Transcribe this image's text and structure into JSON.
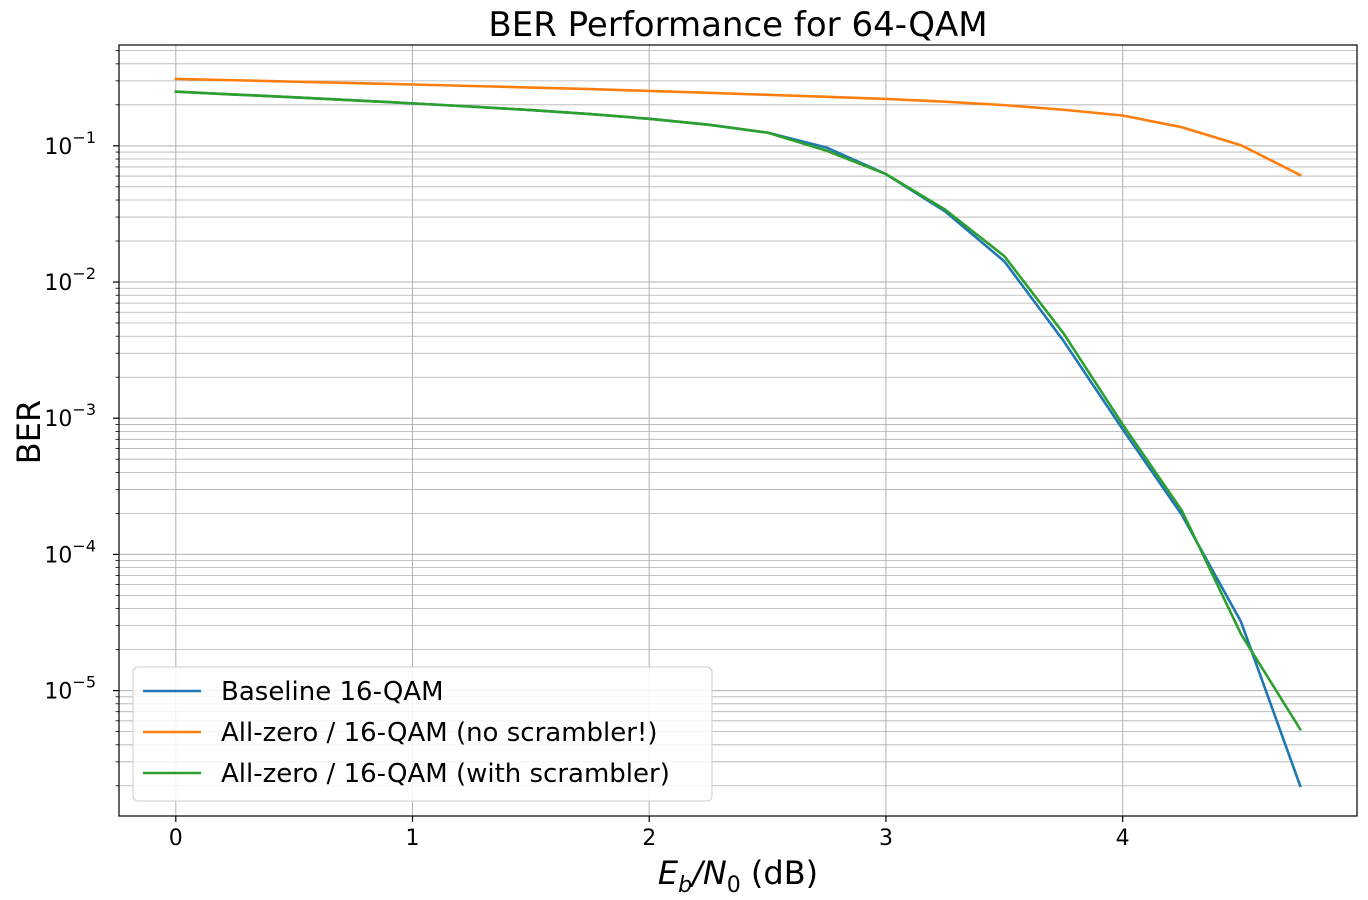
{
  "chart_data": {
    "type": "line",
    "title": "BER Performance for 64-QAM",
    "xlabel": "E_b/N_0 (dB)",
    "xlabel_parts": {
      "main": "E",
      "sub1": "b",
      "slash": "/N",
      "sub2": "0",
      "unit": " (dB)"
    },
    "ylabel": "BER",
    "xlim": [
      -0.24,
      4.99
    ],
    "ylim": [
      1.2e-06,
      0.55
    ],
    "yscale": "log",
    "grid": true,
    "legend_position": "lower-left",
    "x_ticks": [
      "0",
      "1",
      "2",
      "3",
      "4"
    ],
    "y_ticks": [
      {
        "base": "10",
        "exp": "−1",
        "value": 0.1
      },
      {
        "base": "10",
        "exp": "−2",
        "value": 0.01
      },
      {
        "base": "10",
        "exp": "−3",
        "value": 0.001
      },
      {
        "base": "10",
        "exp": "−4",
        "value": 0.0001
      },
      {
        "base": "10",
        "exp": "−5",
        "value": 1e-05
      }
    ],
    "x": [
      0,
      0.25,
      0.5,
      0.75,
      1,
      1.25,
      1.5,
      1.75,
      2,
      2.25,
      2.5,
      2.75,
      3,
      3.25,
      3.5,
      3.75,
      4,
      4.25,
      4.5,
      4.75
    ],
    "series": [
      {
        "name": "Baseline 16-QAM",
        "color": "#1f77b4",
        "values": [
          0.25,
          0.238,
          0.227,
          0.216,
          0.205,
          0.194,
          0.183,
          0.171,
          0.158,
          0.143,
          0.125,
          0.097,
          0.062,
          0.033,
          0.0142,
          0.0037,
          0.00083,
          0.000195,
          3.2e-05,
          2e-06
        ]
      },
      {
        "name": "All-zero / 16-QAM (no scrambler!)",
        "color": "#ff7f0e",
        "values": [
          0.31,
          0.303,
          0.296,
          0.289,
          0.282,
          0.275,
          0.268,
          0.261,
          0.253,
          0.245,
          0.237,
          0.229,
          0.221,
          0.211,
          0.199,
          0.184,
          0.167,
          0.137,
          0.101,
          0.061
        ]
      },
      {
        "name": "All-zero / 16-QAM (with scrambler)",
        "color": "#2ca02c",
        "values": [
          0.25,
          0.238,
          0.227,
          0.216,
          0.205,
          0.194,
          0.183,
          0.171,
          0.158,
          0.143,
          0.125,
          0.092,
          0.062,
          0.034,
          0.0155,
          0.0042,
          0.0009,
          0.00021,
          2.6e-05,
          5.2e-06
        ]
      }
    ]
  }
}
